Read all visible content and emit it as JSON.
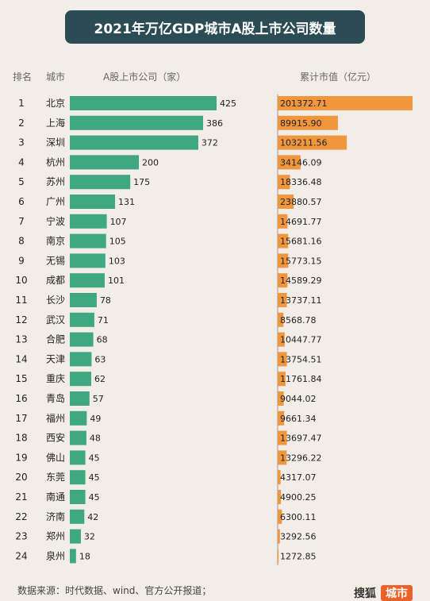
{
  "title": "2021年万亿GDP城市A股上市公司数量",
  "headers": {
    "rank": "排名",
    "city": "城市",
    "count": "A股上市公司（家）",
    "value": "累计市值（亿元）"
  },
  "source": "数据来源：时代数据、wind、官方公开报道；",
  "logo": {
    "part1": "搜狐",
    "part2": "城市"
  },
  "colors": {
    "count_bar": "#3fa883",
    "value_bar": "#f0963d",
    "title_bg": "#2b4c55"
  },
  "chart_data": [
    {
      "type": "bar",
      "orientation": "horizontal",
      "title": "2021年万亿GDP城市A股上市公司数量",
      "ylabel": "A股上市公司（家）",
      "categories": [
        "北京",
        "上海",
        "深圳",
        "杭州",
        "苏州",
        "广州",
        "宁波",
        "南京",
        "无锡",
        "成都",
        "长沙",
        "武汉",
        "合肥",
        "天津",
        "重庆",
        "青岛",
        "福州",
        "西安",
        "佛山",
        "东莞",
        "南通",
        "济南",
        "郑州",
        "泉州"
      ],
      "ranks": [
        "1",
        "2",
        "3",
        "4",
        "5",
        "6",
        "7",
        "8",
        "9",
        "10",
        "11",
        "12",
        "13",
        "14",
        "15",
        "16",
        "17",
        "18",
        "19",
        "20",
        "21",
        "22",
        "23",
        "24"
      ],
      "values": [
        425,
        386,
        372,
        200,
        175,
        131,
        107,
        105,
        103,
        101,
        78,
        71,
        68,
        63,
        62,
        57,
        49,
        48,
        45,
        45,
        45,
        42,
        32,
        18
      ]
    },
    {
      "type": "bar",
      "orientation": "horizontal",
      "ylabel": "累计市值（亿元）",
      "categories": [
        "北京",
        "上海",
        "深圳",
        "杭州",
        "苏州",
        "广州",
        "宁波",
        "南京",
        "无锡",
        "成都",
        "长沙",
        "武汉",
        "合肥",
        "天津",
        "重庆",
        "青岛",
        "福州",
        "西安",
        "佛山",
        "东莞",
        "南通",
        "济南",
        "郑州",
        "泉州"
      ],
      "labels": [
        "201372.71",
        "89915.90",
        "103211.56",
        "34146.09",
        "18336.48",
        "23880.57",
        "14691.77",
        "15681.16",
        "15773.15",
        "14589.29",
        "13737.11",
        "8568.78",
        "10447.77",
        "13754.51",
        "11761.84",
        "9044.02",
        "9661.34",
        "13697.47",
        "13296.22",
        "4317.07",
        "4900.25",
        "6300.11",
        "3292.56",
        "1272.85"
      ],
      "values": [
        201372.71,
        89915.9,
        103211.56,
        34146.09,
        18336.48,
        23880.57,
        14691.77,
        15681.16,
        15773.15,
        14589.29,
        13737.11,
        8568.78,
        10447.77,
        13754.51,
        11761.84,
        9044.02,
        9661.34,
        13697.47,
        13296.22,
        4317.07,
        4900.25,
        6300.11,
        3292.56,
        1272.85
      ]
    }
  ]
}
